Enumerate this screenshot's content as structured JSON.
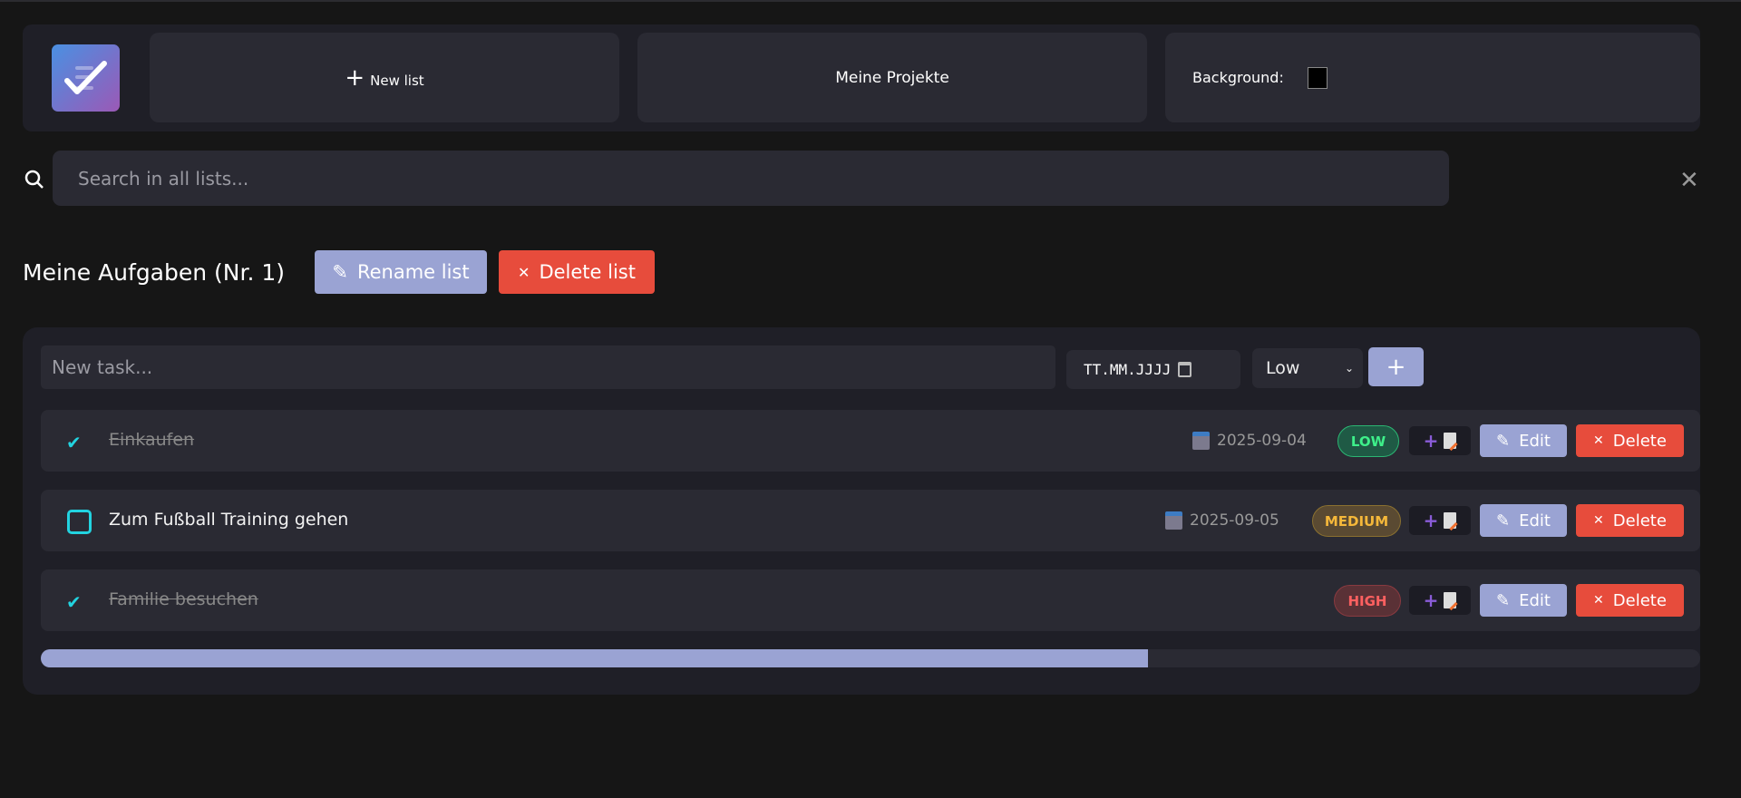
{
  "header": {
    "new_list_label": "New list",
    "project_label": "Meine Projekte",
    "background_label": "Background:",
    "background_color": "#000000"
  },
  "search": {
    "placeholder": "Search in all lists..."
  },
  "list": {
    "title": "Meine Aufgaben (Nr. 1)",
    "rename_label": "Rename list",
    "delete_label": "Delete list"
  },
  "new_task": {
    "placeholder": "New task...",
    "date_placeholder": "TT.MM.JJJJ",
    "priority": "Low",
    "add_label": "+"
  },
  "tasks": [
    {
      "text": "Einkaufen",
      "done": true,
      "due": "2025-09-04",
      "priority": "LOW",
      "edit": "Edit",
      "delete": "Delete"
    },
    {
      "text": "Zum Fußball Training gehen",
      "done": false,
      "due": "2025-09-05",
      "priority": "MEDIUM",
      "edit": "Edit",
      "delete": "Delete"
    },
    {
      "text": "Familie besuchen",
      "done": true,
      "due": "",
      "priority": "HIGH",
      "edit": "Edit",
      "delete": "Delete"
    }
  ],
  "progress": {
    "percent": 66.7
  },
  "colors": {
    "accent": "#9aa3d3",
    "danger": "#e74c3c",
    "check": "#22d3e0"
  }
}
